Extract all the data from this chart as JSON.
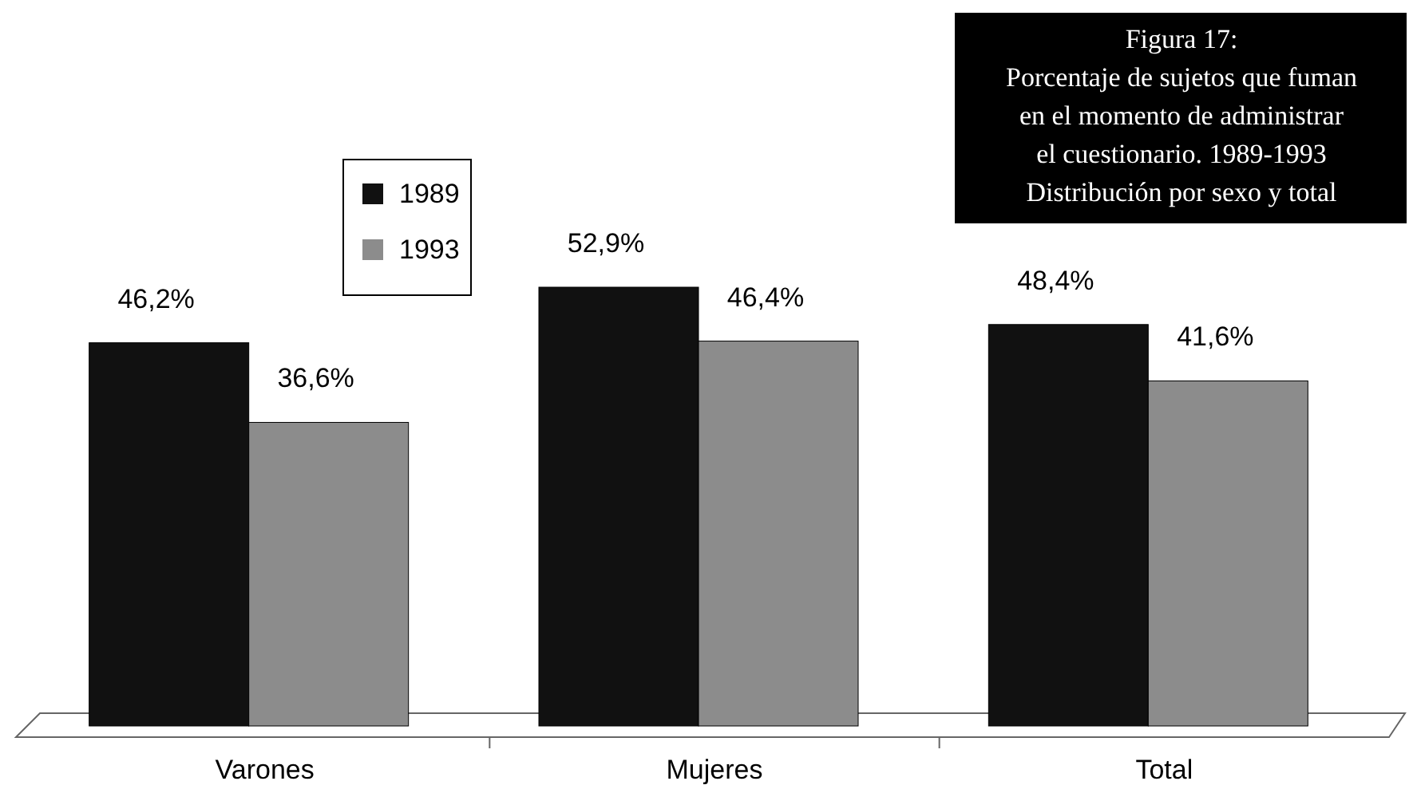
{
  "chart_data": {
    "type": "bar",
    "title": "Figura 17:\nPorcentaje de sujetos que fuman\nen el momento de administrar\nel cuestionario. 1989-1993\nDistribución por sexo y total",
    "categories": [
      "Varones",
      "Mujeres",
      "Total"
    ],
    "series": [
      {
        "name": "1989",
        "color": "#111111",
        "values": [
          46.2,
          52.9,
          48.4
        ],
        "value_labels": [
          "46,2%",
          "52,9%",
          "48,4%"
        ]
      },
      {
        "name": "1993",
        "color": "#8c8c8c",
        "values": [
          36.6,
          46.4,
          41.6
        ],
        "value_labels": [
          "36,6%",
          "46,4%",
          "41,6%"
        ]
      }
    ],
    "legend": "top left"
  }
}
